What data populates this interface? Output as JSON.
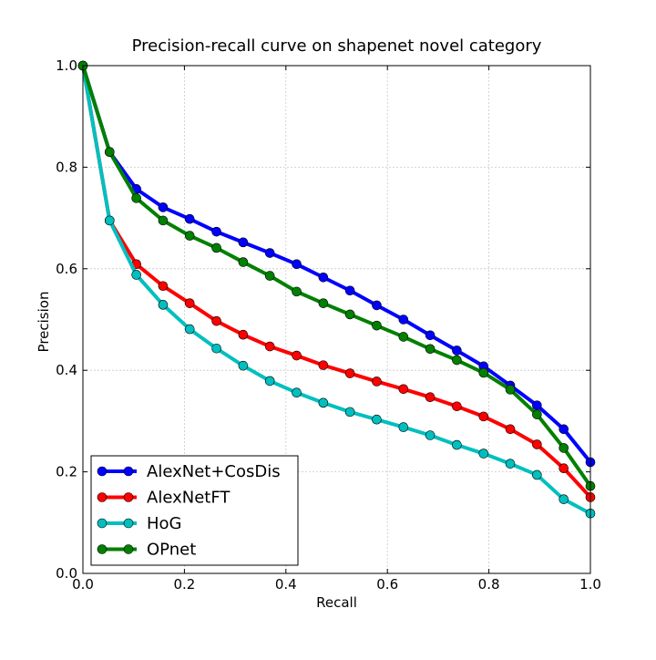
{
  "chart_data": {
    "type": "line",
    "title": "Precision-recall curve on shapenet novel category",
    "xlabel": "Recall",
    "ylabel": "Precision",
    "xlim": [
      0.0,
      1.0
    ],
    "ylim": [
      0.0,
      1.0
    ],
    "xticks": [
      "0.0",
      "0.2",
      "0.4",
      "0.6",
      "0.8",
      "1.0"
    ],
    "yticks": [
      "0.0",
      "0.2",
      "0.4",
      "0.6",
      "0.8",
      "1.0"
    ],
    "grid": true,
    "legend_position": "lower-left",
    "x": [
      0.0,
      0.0526,
      0.1053,
      0.1579,
      0.2105,
      0.2632,
      0.3158,
      0.3684,
      0.4211,
      0.4737,
      0.5263,
      0.5789,
      0.6316,
      0.6842,
      0.7368,
      0.7895,
      0.8421,
      0.8947,
      0.9474,
      1.0
    ],
    "series": [
      {
        "name": "AlexNet+CosDis",
        "color": "#0000ff",
        "values": [
          1.0,
          0.83,
          0.757,
          0.721,
          0.698,
          0.673,
          0.652,
          0.631,
          0.609,
          0.583,
          0.557,
          0.528,
          0.5,
          0.469,
          0.439,
          0.408,
          0.37,
          0.331,
          0.284,
          0.219
        ]
      },
      {
        "name": "AlexNetFT",
        "color": "#ff0000",
        "values": [
          1.0,
          0.695,
          0.609,
          0.566,
          0.532,
          0.497,
          0.47,
          0.447,
          0.429,
          0.41,
          0.394,
          0.378,
          0.363,
          0.347,
          0.329,
          0.309,
          0.284,
          0.254,
          0.207,
          0.15
        ]
      },
      {
        "name": "HoG",
        "color": "#00bfbf",
        "values": [
          1.0,
          0.695,
          0.588,
          0.529,
          0.481,
          0.443,
          0.409,
          0.379,
          0.356,
          0.336,
          0.318,
          0.303,
          0.288,
          0.272,
          0.253,
          0.236,
          0.216,
          0.194,
          0.146,
          0.118
        ]
      },
      {
        "name": "OPnet",
        "color": "#008000",
        "values": [
          1.0,
          0.83,
          0.739,
          0.695,
          0.665,
          0.641,
          0.613,
          0.586,
          0.555,
          0.532,
          0.51,
          0.488,
          0.466,
          0.442,
          0.42,
          0.395,
          0.362,
          0.313,
          0.247,
          0.172
        ]
      }
    ]
  }
}
